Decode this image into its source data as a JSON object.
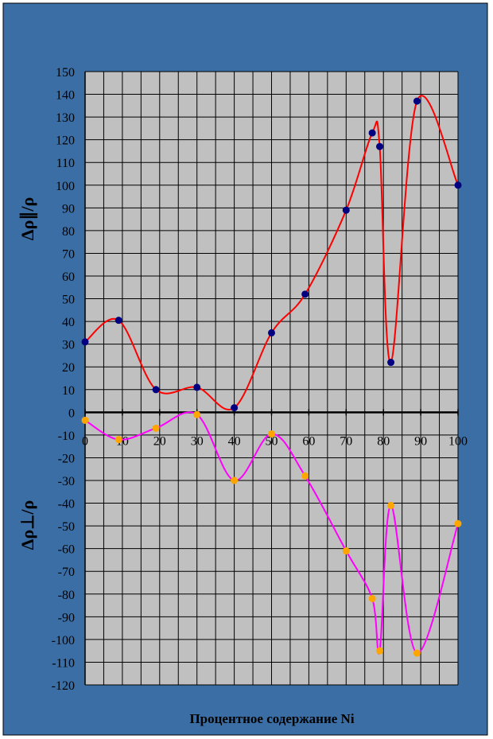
{
  "chart_data": {
    "type": "line",
    "title": "",
    "xlabel": "Процентное содержание Ni",
    "ylabel_top": "Δρ∥/ρ",
    "ylabel_bottom": "Δρ⊥/ρ",
    "xlim": [
      0,
      100
    ],
    "ylim": [
      -120,
      150
    ],
    "x_step": 10,
    "y_step": 10,
    "grid": true,
    "legend": "none",
    "x_ticks": [
      "0",
      "10",
      "20",
      "30",
      "40",
      "50",
      "60",
      "70",
      "80",
      "90",
      "100"
    ],
    "y_ticks": [
      "150",
      "140",
      "130",
      "120",
      "110",
      "100",
      "90",
      "80",
      "70",
      "60",
      "50",
      "40",
      "30",
      "20",
      "10",
      "0",
      "-10",
      "-20",
      "-30",
      "-40",
      "-50",
      "-60",
      "-70",
      "-80",
      "-90",
      "-100",
      "-110",
      "-120"
    ],
    "series": [
      {
        "x": [
          0,
          9,
          19,
          30,
          40,
          50,
          59,
          70,
          77,
          79,
          82,
          89,
          100
        ],
        "y": [
          31,
          40.5,
          10,
          11,
          2,
          35,
          52,
          89,
          123,
          117,
          22,
          137,
          100
        ],
        "line_color": "#ff0000",
        "marker_color": "#000080"
      },
      {
        "x": [
          0,
          9,
          19,
          30,
          40,
          50,
          59,
          70,
          77,
          79,
          82,
          89,
          100
        ],
        "y": [
          -3.5,
          -12,
          -7,
          -1,
          -30,
          -9.5,
          -28,
          -61,
          -82,
          -105,
          -41,
          -106,
          -49
        ],
        "line_color": "#ff00ff",
        "marker_color": "#ffa500"
      }
    ],
    "colors": {
      "frame_bg": "#3b6ea5",
      "plot_bg": "#c0c0c0",
      "grid": "#000000"
    }
  }
}
